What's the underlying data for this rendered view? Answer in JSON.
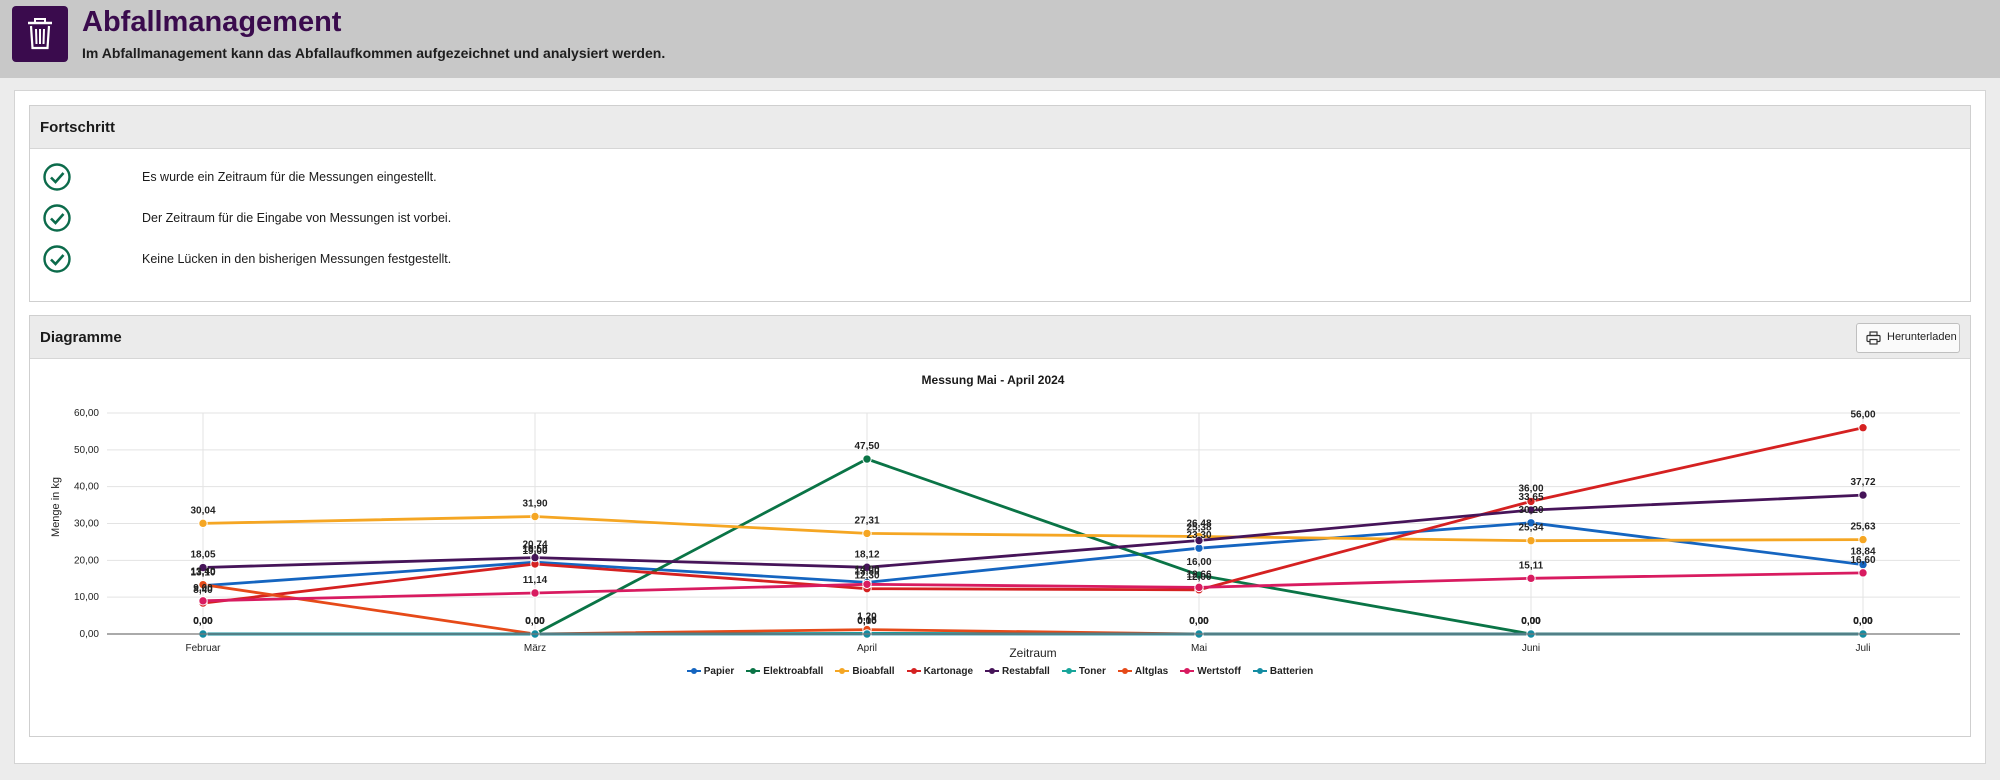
{
  "header": {
    "title": "Abfallmanagement",
    "subtitle": "Im Abfallmanagement kann das Abfallaufkommen aufgezeichnet und analysiert werden."
  },
  "progress": {
    "title": "Fortschritt",
    "items": [
      "Es wurde ein Zeitraum für die Messungen eingestellt.",
      "Der Zeitraum für die Eingabe von Messungen ist vorbei.",
      "Keine Lücken in den bisherigen Messungen festgestellt."
    ]
  },
  "diagrams": {
    "title": "Diagramme",
    "download_label": "Herunterladen"
  },
  "colors": {
    "brand": "#3a0b4d",
    "check": "#0c6b4b"
  },
  "icons": {
    "app": "trash-icon",
    "check": "check-circle-icon",
    "download": "printer-icon"
  },
  "chart_data": {
    "type": "line",
    "title": "Messung Mai - April 2024",
    "xlabel": "Zeitraum",
    "ylabel": "Menge in kg",
    "categories": [
      "Februar",
      "März",
      "April",
      "Mai",
      "Juni",
      "Juli"
    ],
    "ylim": [
      0,
      60
    ],
    "yticks": [
      "0,00",
      "10,00",
      "20,00",
      "30,00",
      "40,00",
      "50,00",
      "60,00"
    ],
    "grid": true,
    "legend": "bottom",
    "series": [
      {
        "name": "Papier",
        "color": "#1565c0",
        "values": [
          13.1,
          19.5,
          14.0,
          23.3,
          30.2,
          18.84
        ]
      },
      {
        "name": "Elektroabfall",
        "color": "#0a7446",
        "values": [
          0.0,
          0.0,
          47.5,
          16.0,
          0.0,
          0.0
        ]
      },
      {
        "name": "Bioabfall",
        "color": "#f5a623",
        "values": [
          30.04,
          31.9,
          27.31,
          26.48,
          25.34,
          25.63
        ]
      },
      {
        "name": "Kartonage",
        "color": "#d52121",
        "values": [
          8.4,
          19.0,
          12.3,
          12.0,
          36.0,
          56.0
        ]
      },
      {
        "name": "Restabfall",
        "color": "#461459",
        "values": [
          18.05,
          20.74,
          18.12,
          25.38,
          33.65,
          37.72
        ]
      },
      {
        "name": "Toner",
        "color": "#17a59a",
        "values": [
          0.0,
          0.0,
          0.16,
          0.0,
          0.0,
          0.0
        ]
      },
      {
        "name": "Altglas",
        "color": "#e64a19",
        "values": [
          13.4,
          0.0,
          1.2,
          0.0,
          0.0,
          0.0
        ]
      },
      {
        "name": "Wertstoff",
        "color": "#d81b60",
        "values": [
          9.0,
          11.14,
          13.5,
          12.66,
          15.11,
          16.6
        ]
      },
      {
        "name": "Batterien",
        "color": "#138ca2",
        "values": [
          0.0,
          0.0,
          0.0,
          0.0,
          0.0,
          0.0
        ]
      }
    ]
  }
}
